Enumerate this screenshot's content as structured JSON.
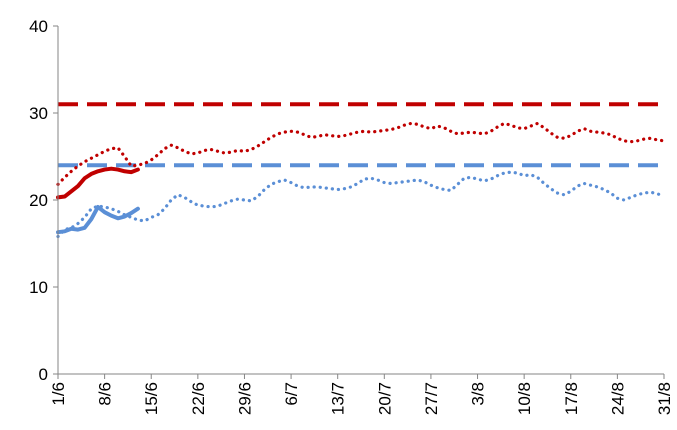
{
  "chart_data": {
    "type": "line",
    "title": "",
    "xlabel": "",
    "ylabel": "",
    "ylim": [
      0,
      40
    ],
    "yticks": [
      0,
      10,
      20,
      30,
      40
    ],
    "xlim": [
      "2024-06-01",
      "2024-08-31"
    ],
    "x_tick_labels": [
      "1/6",
      "8/6",
      "15/6",
      "22/6",
      "29/6",
      "6/7",
      "13/7",
      "20/7",
      "27/7",
      "3/8",
      "10/8",
      "17/8",
      "24/8",
      "31/8"
    ],
    "grid": false,
    "legend": "none",
    "series": [
      {
        "color": "#C00000",
        "style": "dashed",
        "x": [
          "2024-06-01",
          "2024-08-31"
        ],
        "values": [
          31,
          31
        ]
      },
      {
        "color": "#5B8FD6",
        "style": "dashed",
        "x": [
          "2024-06-01",
          "2024-08-31"
        ],
        "values": [
          24,
          24
        ]
      },
      {
        "color": "#C00000",
        "style": "dotted",
        "x": [
          "2024-06-01",
          "2024-06-02",
          "2024-06-03",
          "2024-06-04",
          "2024-06-05",
          "2024-06-06",
          "2024-06-07",
          "2024-06-08",
          "2024-06-09",
          "2024-06-10",
          "2024-06-11",
          "2024-06-12",
          "2024-06-13",
          "2024-06-14",
          "2024-06-15",
          "2024-06-16",
          "2024-06-17",
          "2024-06-18",
          "2024-06-19",
          "2024-06-20",
          "2024-06-21",
          "2024-06-22",
          "2024-06-23",
          "2024-06-24",
          "2024-06-25",
          "2024-06-26",
          "2024-06-27",
          "2024-06-28",
          "2024-06-29",
          "2024-06-30",
          "2024-07-01",
          "2024-07-02",
          "2024-07-03",
          "2024-07-04",
          "2024-07-05",
          "2024-07-06",
          "2024-07-07",
          "2024-07-08",
          "2024-07-09",
          "2024-07-10",
          "2024-07-11",
          "2024-07-12",
          "2024-07-13",
          "2024-07-14",
          "2024-07-15",
          "2024-07-16",
          "2024-07-17",
          "2024-07-18",
          "2024-07-19",
          "2024-07-20",
          "2024-07-21",
          "2024-07-22",
          "2024-07-23",
          "2024-07-24",
          "2024-07-25",
          "2024-07-26",
          "2024-07-27",
          "2024-07-28",
          "2024-07-29",
          "2024-07-30",
          "2024-07-31",
          "2024-08-01",
          "2024-08-02",
          "2024-08-03",
          "2024-08-04",
          "2024-08-05",
          "2024-08-06",
          "2024-08-07",
          "2024-08-08",
          "2024-08-09",
          "2024-08-10",
          "2024-08-11",
          "2024-08-12",
          "2024-08-13",
          "2024-08-14",
          "2024-08-15",
          "2024-08-16",
          "2024-08-17",
          "2024-08-18",
          "2024-08-19",
          "2024-08-20",
          "2024-08-21",
          "2024-08-22",
          "2024-08-23",
          "2024-08-24",
          "2024-08-25",
          "2024-08-26",
          "2024-08-27",
          "2024-08-28",
          "2024-08-29",
          "2024-08-30",
          "2024-08-31"
        ],
        "values": [
          21.8,
          22.6,
          23.3,
          23.9,
          24.4,
          24.8,
          25.2,
          25.6,
          25.9,
          26.0,
          25.0,
          23.9,
          24.0,
          24.2,
          24.6,
          25.2,
          25.9,
          26.3,
          26.0,
          25.6,
          25.3,
          25.4,
          25.7,
          25.8,
          25.6,
          25.4,
          25.5,
          25.7,
          25.6,
          25.8,
          26.2,
          26.7,
          27.2,
          27.6,
          27.8,
          27.9,
          27.8,
          27.5,
          27.2,
          27.3,
          27.5,
          27.4,
          27.3,
          27.4,
          27.6,
          27.8,
          27.9,
          27.8,
          27.9,
          28.0,
          28.1,
          28.3,
          28.6,
          28.8,
          28.7,
          28.4,
          28.2,
          28.5,
          28.3,
          27.9,
          27.6,
          27.7,
          27.8,
          27.7,
          27.6,
          27.9,
          28.4,
          28.8,
          28.6,
          28.3,
          28.2,
          28.5,
          28.8,
          28.3,
          27.7,
          27.2,
          27.1,
          27.4,
          27.9,
          28.2,
          27.9,
          27.8,
          27.7,
          27.5,
          27.1,
          26.8,
          26.7,
          26.8,
          27.0,
          27.1,
          26.9,
          26.8
        ]
      },
      {
        "color": "#5B8FD6",
        "style": "dotted",
        "x": [
          "2024-06-01",
          "2024-06-02",
          "2024-06-03",
          "2024-06-04",
          "2024-06-05",
          "2024-06-06",
          "2024-06-07",
          "2024-06-08",
          "2024-06-09",
          "2024-06-10",
          "2024-06-11",
          "2024-06-12",
          "2024-06-13",
          "2024-06-14",
          "2024-06-15",
          "2024-06-16",
          "2024-06-17",
          "2024-06-18",
          "2024-06-19",
          "2024-06-20",
          "2024-06-21",
          "2024-06-22",
          "2024-06-23",
          "2024-06-24",
          "2024-06-25",
          "2024-06-26",
          "2024-06-27",
          "2024-06-28",
          "2024-06-29",
          "2024-06-30",
          "2024-07-01",
          "2024-07-02",
          "2024-07-03",
          "2024-07-04",
          "2024-07-05",
          "2024-07-06",
          "2024-07-07",
          "2024-07-08",
          "2024-07-09",
          "2024-07-10",
          "2024-07-11",
          "2024-07-12",
          "2024-07-13",
          "2024-07-14",
          "2024-07-15",
          "2024-07-16",
          "2024-07-17",
          "2024-07-18",
          "2024-07-19",
          "2024-07-20",
          "2024-07-21",
          "2024-07-22",
          "2024-07-23",
          "2024-07-24",
          "2024-07-25",
          "2024-07-26",
          "2024-07-27",
          "2024-07-28",
          "2024-07-29",
          "2024-07-30",
          "2024-07-31",
          "2024-08-01",
          "2024-08-02",
          "2024-08-03",
          "2024-08-04",
          "2024-08-05",
          "2024-08-06",
          "2024-08-07",
          "2024-08-08",
          "2024-08-09",
          "2024-08-10",
          "2024-08-11",
          "2024-08-12",
          "2024-08-13",
          "2024-08-14",
          "2024-08-15",
          "2024-08-16",
          "2024-08-17",
          "2024-08-18",
          "2024-08-19",
          "2024-08-20",
          "2024-08-21",
          "2024-08-22",
          "2024-08-23",
          "2024-08-24",
          "2024-08-25",
          "2024-08-26",
          "2024-08-27",
          "2024-08-28",
          "2024-08-29",
          "2024-08-30",
          "2024-08-31"
        ],
        "values": [
          15.8,
          16.6,
          16.8,
          17.3,
          18.0,
          19.0,
          19.3,
          19.2,
          19.0,
          18.7,
          18.3,
          18.0,
          17.7,
          17.6,
          18.0,
          18.3,
          19.0,
          20.0,
          20.6,
          20.3,
          19.8,
          19.4,
          19.3,
          19.2,
          19.3,
          19.6,
          19.9,
          20.1,
          20.0,
          19.9,
          20.4,
          21.2,
          21.8,
          22.1,
          22.3,
          22.0,
          21.6,
          21.4,
          21.5,
          21.5,
          21.4,
          21.3,
          21.2,
          21.3,
          21.5,
          21.9,
          22.4,
          22.5,
          22.3,
          22.0,
          21.9,
          22.0,
          22.1,
          22.2,
          22.3,
          22.1,
          21.7,
          21.4,
          21.2,
          21.1,
          21.8,
          22.5,
          22.6,
          22.4,
          22.2,
          22.4,
          22.8,
          23.1,
          23.2,
          23.1,
          22.8,
          22.9,
          22.6,
          21.9,
          21.3,
          20.8,
          20.6,
          21.0,
          21.6,
          21.9,
          21.7,
          21.5,
          21.2,
          20.8,
          20.2,
          20.0,
          20.3,
          20.6,
          20.8,
          20.9,
          20.7,
          20.5
        ]
      },
      {
        "color": "#C00000",
        "style": "solid",
        "x": [
          "2024-06-01",
          "2024-06-02",
          "2024-06-03",
          "2024-06-04",
          "2024-06-05",
          "2024-06-06",
          "2024-06-07",
          "2024-06-08",
          "2024-06-09",
          "2024-06-10",
          "2024-06-11",
          "2024-06-12",
          "2024-06-13"
        ],
        "values": [
          20.3,
          20.4,
          21.0,
          21.6,
          22.5,
          23.0,
          23.3,
          23.5,
          23.6,
          23.5,
          23.3,
          23.2,
          23.5
        ]
      },
      {
        "color": "#5B8FD6",
        "style": "solid",
        "x": [
          "2024-06-01",
          "2024-06-02",
          "2024-06-03",
          "2024-06-04",
          "2024-06-05",
          "2024-06-06",
          "2024-06-07",
          "2024-06-08",
          "2024-06-09",
          "2024-06-10",
          "2024-06-11",
          "2024-06-12",
          "2024-06-13"
        ],
        "values": [
          16.3,
          16.4,
          16.7,
          16.6,
          16.8,
          17.8,
          19.2,
          18.6,
          18.2,
          17.9,
          18.1,
          18.5,
          19.0
        ]
      }
    ]
  }
}
